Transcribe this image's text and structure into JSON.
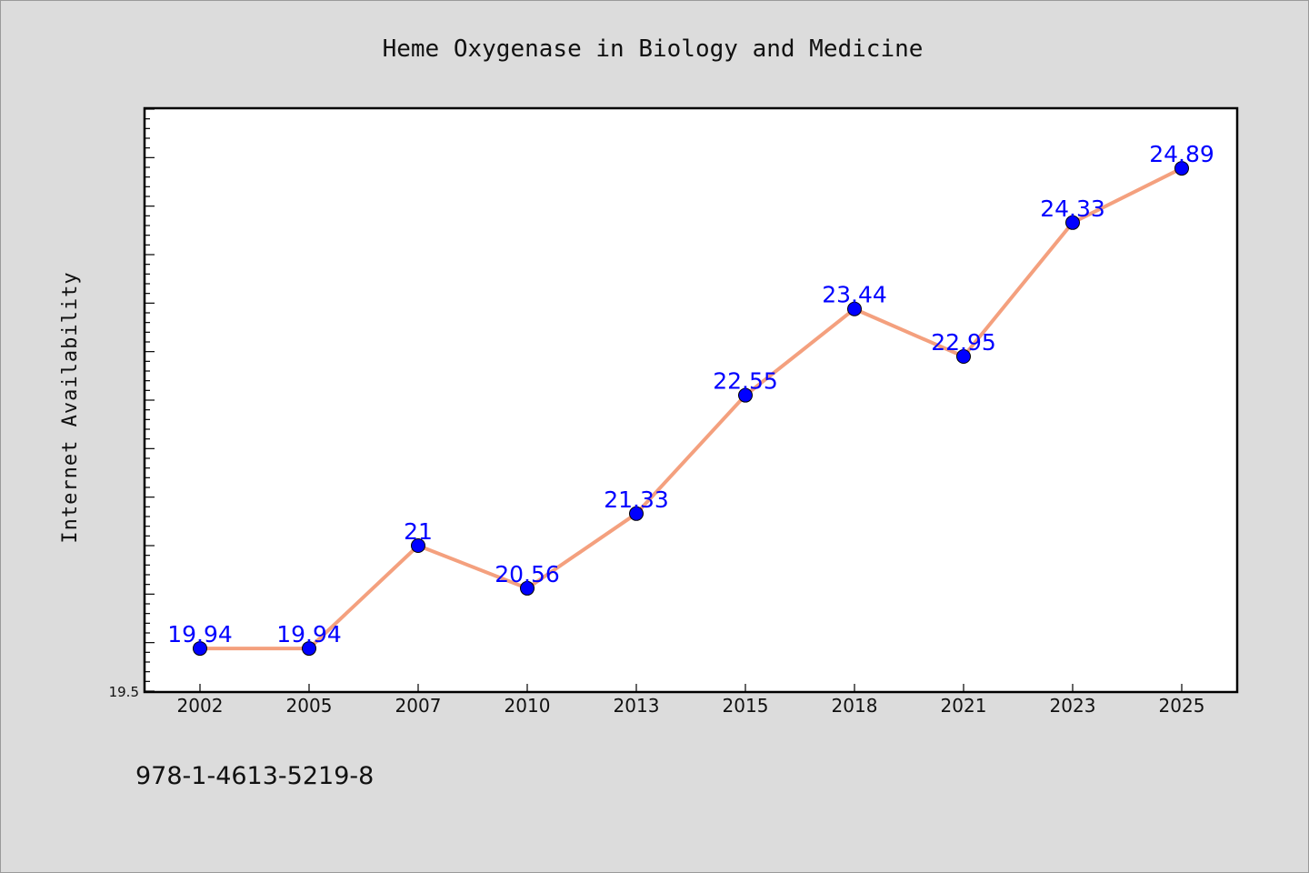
{
  "chart_data": {
    "type": "line",
    "title": "Heme Oxygenase in Biology and Medicine",
    "xlabel": "",
    "ylabel": "Internet Availability",
    "categories": [
      "2002",
      "2005",
      "2007",
      "2010",
      "2013",
      "2015",
      "2018",
      "2021",
      "2023",
      "2025"
    ],
    "values": [
      19.94,
      19.94,
      21,
      20.56,
      21.33,
      22.55,
      23.44,
      22.95,
      24.33,
      24.89
    ],
    "data_labels": [
      "19.94",
      "19.94",
      "21",
      "20.56",
      "21.33",
      "22.55",
      "23.44",
      "22.95",
      "24.33",
      "24.89"
    ],
    "ylim": [
      19.5,
      25.5
    ],
    "ytick_label": "19.5",
    "grid": false,
    "line_color": "#f4a07e",
    "marker_color": "#0000ff",
    "label_color": "#0000ff",
    "background_color": "#dcdcdc",
    "plot_background": "#ffffff"
  },
  "footer": {
    "isbn": "978-1-4613-5219-8"
  }
}
